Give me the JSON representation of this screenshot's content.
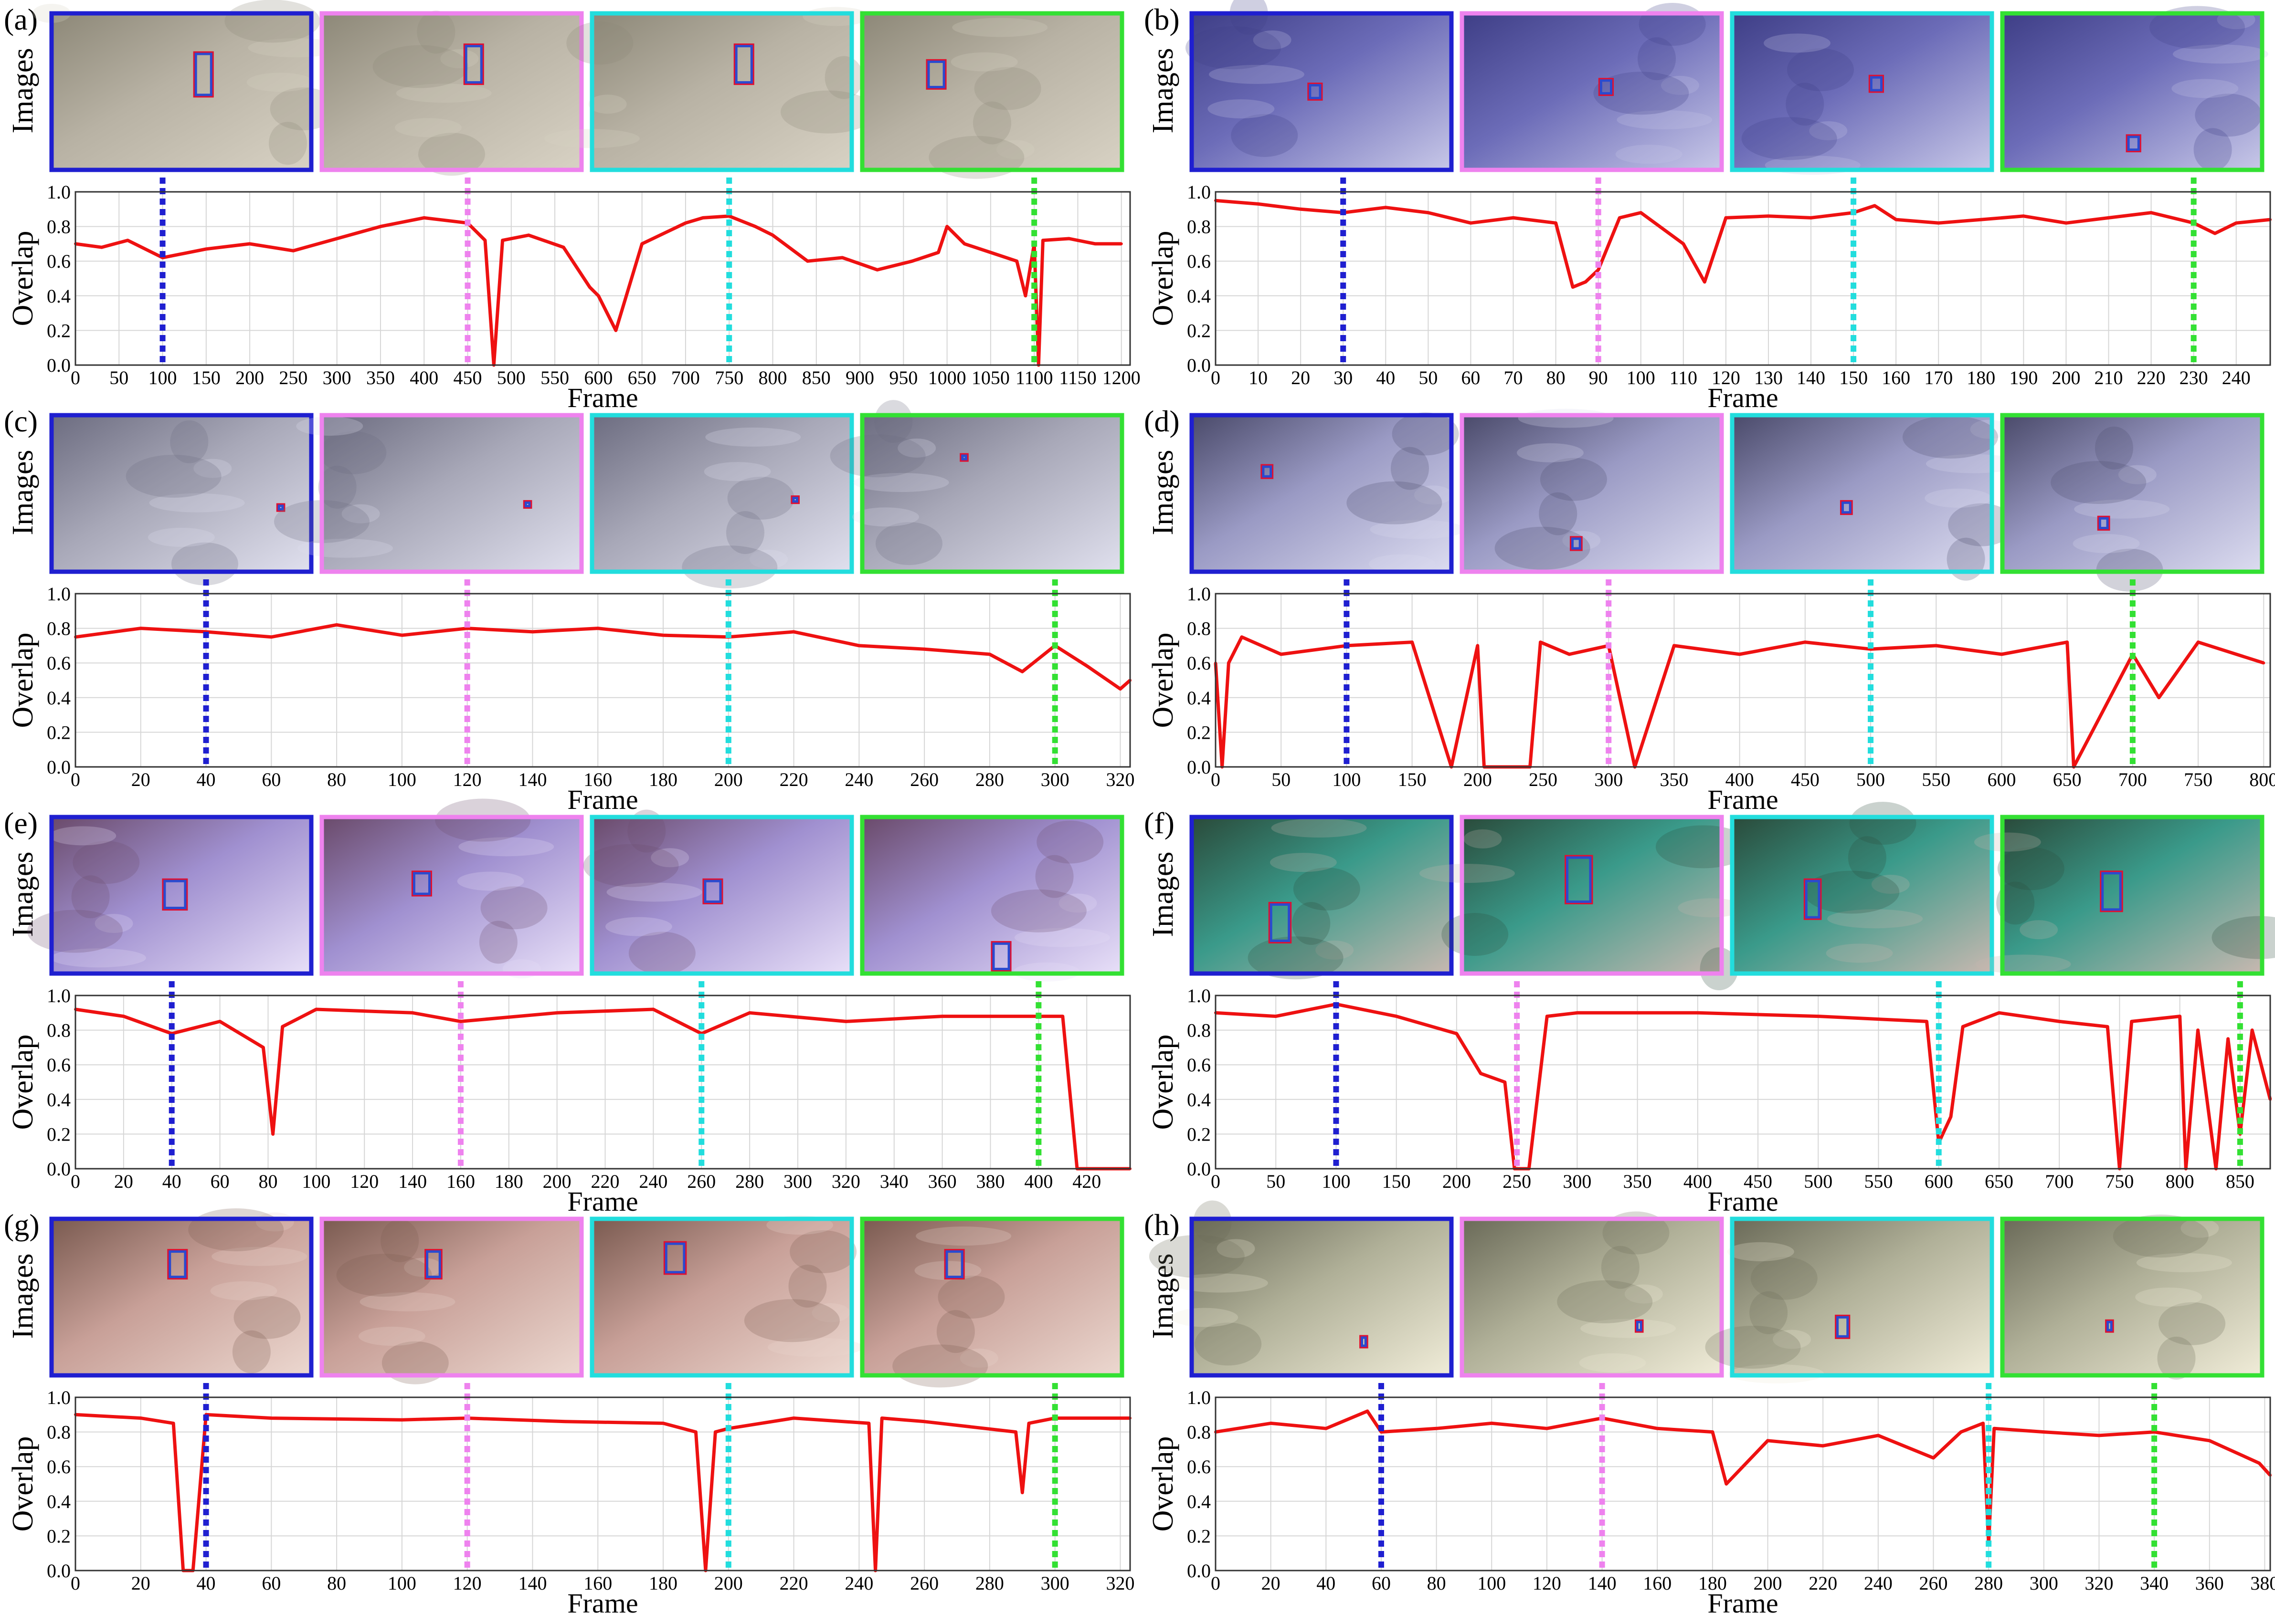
{
  "figure": {
    "row_labels": {
      "images": "Images",
      "overlap": "Overlap"
    },
    "x_axis_label": "Frame",
    "marker_colors": [
      "#1f1fd0",
      "#ee82ee",
      "#22dddd",
      "#33e033"
    ],
    "series_color": "#ee1111"
  },
  "chart_data": [
    {
      "panel": "(a)",
      "type": "line",
      "xlabel": "Frame",
      "ylabel": "Overlap",
      "xlim": [
        0,
        1210
      ],
      "ylim": [
        0,
        1.0
      ],
      "grid": true,
      "xticks": [
        0,
        50,
        100,
        150,
        200,
        250,
        300,
        350,
        400,
        450,
        500,
        550,
        600,
        650,
        700,
        750,
        800,
        850,
        900,
        950,
        1000,
        1050,
        1100,
        1150,
        1200
      ],
      "yticks": [
        "0.0",
        "0.2",
        "0.4",
        "0.6",
        "0.8",
        "1.0"
      ],
      "marker_frames": [
        100,
        450,
        750,
        1100
      ],
      "scene": [
        "#b8b2a4",
        "#8d8878",
        "#d8d2c4"
      ],
      "boxes": [
        [
          0.55,
          0.25,
          0.07,
          0.28
        ],
        [
          0.55,
          0.2,
          0.07,
          0.25
        ],
        [
          0.55,
          0.2,
          0.07,
          0.25
        ],
        [
          0.25,
          0.3,
          0.07,
          0.18
        ]
      ],
      "x": [
        0,
        30,
        60,
        100,
        150,
        200,
        250,
        300,
        350,
        400,
        450,
        470,
        480,
        490,
        520,
        560,
        590,
        600,
        620,
        650,
        700,
        720,
        750,
        780,
        800,
        840,
        880,
        920,
        960,
        990,
        1000,
        1020,
        1050,
        1080,
        1090,
        1100,
        1105,
        1110,
        1140,
        1170,
        1200
      ],
      "values": [
        0.7,
        0.68,
        0.72,
        0.62,
        0.67,
        0.7,
        0.66,
        0.73,
        0.8,
        0.85,
        0.82,
        0.72,
        0.0,
        0.72,
        0.75,
        0.68,
        0.45,
        0.4,
        0.2,
        0.7,
        0.82,
        0.85,
        0.86,
        0.8,
        0.75,
        0.6,
        0.62,
        0.55,
        0.6,
        0.65,
        0.8,
        0.7,
        0.65,
        0.6,
        0.4,
        0.7,
        0.0,
        0.72,
        0.73,
        0.7,
        0.7
      ]
    },
    {
      "panel": "(b)",
      "type": "line",
      "xlabel": "Frame",
      "ylabel": "Overlap",
      "xlim": [
        0,
        248
      ],
      "ylim": [
        0,
        1.0
      ],
      "grid": true,
      "xticks": [
        0,
        10,
        20,
        30,
        40,
        50,
        60,
        70,
        80,
        90,
        100,
        110,
        120,
        130,
        140,
        150,
        160,
        170,
        180,
        190,
        200,
        210,
        220,
        230,
        240
      ],
      "yticks": [
        "0.0",
        "0.2",
        "0.4",
        "0.6",
        "0.8",
        "1.0"
      ],
      "marker_frames": [
        30,
        90,
        150,
        230
      ],
      "scene": [
        "#6c6cb8",
        "#3e3e86",
        "#c8c8e8"
      ],
      "boxes": [
        [
          0.45,
          0.45,
          0.05,
          0.1
        ],
        [
          0.53,
          0.42,
          0.05,
          0.1
        ],
        [
          0.53,
          0.4,
          0.05,
          0.1
        ],
        [
          0.48,
          0.78,
          0.05,
          0.1
        ]
      ],
      "x": [
        0,
        10,
        20,
        30,
        40,
        50,
        60,
        70,
        80,
        84,
        87,
        90,
        95,
        100,
        110,
        115,
        120,
        130,
        140,
        150,
        155,
        160,
        170,
        180,
        190,
        200,
        210,
        220,
        230,
        235,
        240,
        248
      ],
      "values": [
        0.95,
        0.93,
        0.9,
        0.88,
        0.91,
        0.88,
        0.82,
        0.85,
        0.82,
        0.45,
        0.48,
        0.55,
        0.85,
        0.88,
        0.7,
        0.48,
        0.85,
        0.86,
        0.85,
        0.88,
        0.92,
        0.84,
        0.82,
        0.84,
        0.86,
        0.82,
        0.85,
        0.88,
        0.82,
        0.76,
        0.82,
        0.84
      ]
    },
    {
      "panel": "(c)",
      "type": "line",
      "xlabel": "Frame",
      "ylabel": "Overlap",
      "xlim": [
        0,
        323
      ],
      "ylim": [
        0,
        1.0
      ],
      "grid": true,
      "xticks": [
        0,
        20,
        40,
        60,
        80,
        100,
        120,
        140,
        160,
        180,
        200,
        220,
        240,
        260,
        280,
        300,
        320
      ],
      "yticks": [
        "0.0",
        "0.2",
        "0.4",
        "0.6",
        "0.8",
        "1.0"
      ],
      "marker_frames": [
        40,
        120,
        200,
        300
      ],
      "scene": [
        "#a8a8b8",
        "#6c6c80",
        "#e0e0ee"
      ],
      "boxes": [
        [
          0.87,
          0.57,
          0.025,
          0.04
        ],
        [
          0.78,
          0.55,
          0.025,
          0.04
        ],
        [
          0.77,
          0.52,
          0.025,
          0.04
        ],
        [
          0.38,
          0.25,
          0.025,
          0.04
        ]
      ],
      "x": [
        0,
        20,
        40,
        60,
        80,
        100,
        120,
        140,
        160,
        180,
        200,
        220,
        240,
        260,
        280,
        290,
        300,
        310,
        320,
        323
      ],
      "values": [
        0.75,
        0.8,
        0.78,
        0.75,
        0.82,
        0.76,
        0.8,
        0.78,
        0.8,
        0.76,
        0.75,
        0.78,
        0.7,
        0.68,
        0.65,
        0.55,
        0.7,
        0.58,
        0.45,
        0.5
      ]
    },
    {
      "panel": "(d)",
      "type": "line",
      "xlabel": "Frame",
      "ylabel": "Overlap",
      "xlim": [
        0,
        805
      ],
      "ylim": [
        0,
        1.0
      ],
      "grid": true,
      "xticks": [
        0,
        50,
        100,
        150,
        200,
        250,
        300,
        350,
        400,
        450,
        500,
        550,
        600,
        650,
        700,
        750,
        800
      ],
      "yticks": [
        "0.0",
        "0.2",
        "0.4",
        "0.6",
        "0.8",
        "1.0"
      ],
      "marker_frames": [
        100,
        300,
        500,
        700
      ],
      "scene": [
        "#9a9ac4",
        "#4a4a6a",
        "#dcdcf0"
      ],
      "boxes": [
        [
          0.27,
          0.32,
          0.04,
          0.08
        ],
        [
          0.42,
          0.78,
          0.04,
          0.08
        ],
        [
          0.42,
          0.55,
          0.04,
          0.08
        ],
        [
          0.37,
          0.65,
          0.04,
          0.08
        ]
      ],
      "x": [
        0,
        5,
        10,
        20,
        50,
        100,
        150,
        180,
        200,
        205,
        240,
        248,
        270,
        300,
        320,
        350,
        400,
        450,
        500,
        550,
        600,
        650,
        655,
        700,
        720,
        750,
        800
      ],
      "values": [
        0.6,
        0.0,
        0.6,
        0.75,
        0.65,
        0.7,
        0.72,
        0.0,
        0.7,
        0.0,
        0.0,
        0.72,
        0.65,
        0.7,
        0.0,
        0.7,
        0.65,
        0.72,
        0.68,
        0.7,
        0.65,
        0.72,
        0.0,
        0.65,
        0.4,
        0.72,
        0.6
      ]
    },
    {
      "panel": "(e)",
      "type": "line",
      "xlabel": "Frame",
      "ylabel": "Overlap",
      "xlim": [
        0,
        438
      ],
      "ylim": [
        0,
        1.0
      ],
      "grid": true,
      "xticks": [
        0,
        20,
        40,
        60,
        80,
        100,
        120,
        140,
        160,
        180,
        200,
        220,
        240,
        260,
        280,
        300,
        320,
        340,
        360,
        380,
        400,
        420
      ],
      "yticks": [
        "0.0",
        "0.2",
        "0.4",
        "0.6",
        "0.8",
        "1.0"
      ],
      "marker_frames": [
        40,
        160,
        260,
        400
      ],
      "scene": [
        "#a090d0",
        "#6a4a6a",
        "#e8e0f8"
      ],
      "boxes": [
        [
          0.43,
          0.4,
          0.09,
          0.19
        ],
        [
          0.35,
          0.35,
          0.07,
          0.15
        ],
        [
          0.43,
          0.4,
          0.07,
          0.15
        ],
        [
          0.5,
          0.8,
          0.07,
          0.18
        ]
      ],
      "x": [
        0,
        20,
        40,
        60,
        78,
        82,
        86,
        100,
        140,
        160,
        200,
        240,
        260,
        280,
        320,
        360,
        400,
        410,
        416,
        438
      ],
      "values": [
        0.92,
        0.88,
        0.78,
        0.85,
        0.7,
        0.2,
        0.82,
        0.92,
        0.9,
        0.85,
        0.9,
        0.92,
        0.78,
        0.9,
        0.85,
        0.88,
        0.88,
        0.88,
        0.0,
        0.0
      ]
    },
    {
      "panel": "(f)",
      "type": "line",
      "xlabel": "Frame",
      "ylabel": "Overlap",
      "xlim": [
        0,
        875
      ],
      "ylim": [
        0,
        1.0
      ],
      "grid": true,
      "xticks": [
        0,
        50,
        100,
        150,
        200,
        250,
        300,
        350,
        400,
        450,
        500,
        550,
        600,
        650,
        700,
        750,
        800,
        850
      ],
      "yticks": [
        "0.0",
        "0.2",
        "0.4",
        "0.6",
        "0.8",
        "1.0"
      ],
      "marker_frames": [
        100,
        250,
        600,
        850
      ],
      "scene": [
        "#3a9a8a",
        "#2a4a3a",
        "#c8b8b0"
      ],
      "boxes": [
        [
          0.3,
          0.55,
          0.08,
          0.25
        ],
        [
          0.4,
          0.25,
          0.1,
          0.3
        ],
        [
          0.28,
          0.4,
          0.06,
          0.25
        ],
        [
          0.38,
          0.35,
          0.08,
          0.25
        ]
      ],
      "x": [
        0,
        50,
        100,
        150,
        200,
        220,
        240,
        248,
        252,
        260,
        275,
        300,
        400,
        500,
        590,
        600,
        610,
        620,
        650,
        700,
        740,
        750,
        760,
        800,
        805,
        815,
        830,
        840,
        850,
        860,
        875
      ],
      "values": [
        0.9,
        0.88,
        0.95,
        0.88,
        0.78,
        0.55,
        0.5,
        0.0,
        0.0,
        0.0,
        0.88,
        0.9,
        0.9,
        0.88,
        0.85,
        0.15,
        0.3,
        0.82,
        0.9,
        0.85,
        0.82,
        0.0,
        0.85,
        0.88,
        0.0,
        0.8,
        0.0,
        0.75,
        0.2,
        0.8,
        0.4
      ]
    },
    {
      "panel": "(g)",
      "type": "line",
      "xlabel": "Frame",
      "ylabel": "Overlap",
      "xlim": [
        0,
        323
      ],
      "ylim": [
        0,
        1.0
      ],
      "grid": true,
      "xticks": [
        0,
        20,
        40,
        60,
        80,
        100,
        120,
        140,
        160,
        180,
        200,
        220,
        240,
        260,
        280,
        300,
        320
      ],
      "yticks": [
        "0.0",
        "0.2",
        "0.4",
        "0.6",
        "0.8",
        "1.0"
      ],
      "marker_frames": [
        40,
        120,
        200,
        300
      ],
      "scene": [
        "#c8a098",
        "#7a5a50",
        "#ecd8d0"
      ],
      "boxes": [
        [
          0.45,
          0.2,
          0.07,
          0.18
        ],
        [
          0.4,
          0.2,
          0.06,
          0.18
        ],
        [
          0.28,
          0.15,
          0.08,
          0.2
        ],
        [
          0.32,
          0.2,
          0.07,
          0.18
        ]
      ],
      "x": [
        0,
        20,
        30,
        33,
        36,
        40,
        60,
        100,
        120,
        150,
        180,
        190,
        193,
        196,
        200,
        220,
        243,
        245,
        247,
        260,
        288,
        290,
        292,
        300,
        323
      ],
      "values": [
        0.9,
        0.88,
        0.85,
        0.0,
        0.0,
        0.9,
        0.88,
        0.87,
        0.88,
        0.86,
        0.85,
        0.8,
        0.0,
        0.8,
        0.82,
        0.88,
        0.85,
        0.0,
        0.88,
        0.86,
        0.8,
        0.45,
        0.85,
        0.88,
        0.88
      ]
    },
    {
      "panel": "(h)",
      "type": "line",
      "xlabel": "Frame",
      "ylabel": "Overlap",
      "xlim": [
        0,
        382
      ],
      "ylim": [
        0,
        1.0
      ],
      "grid": true,
      "xticks": [
        0,
        20,
        40,
        60,
        80,
        100,
        120,
        140,
        160,
        180,
        200,
        220,
        240,
        260,
        280,
        300,
        320,
        340,
        360,
        380
      ],
      "yticks": [
        "0.0",
        "0.2",
        "0.4",
        "0.6",
        "0.8",
        "1.0"
      ],
      "marker_frames": [
        60,
        140,
        280,
        340
      ],
      "scene": [
        "#b0b098",
        "#6a6a58",
        "#f0ecd8"
      ],
      "boxes": [
        [
          0.65,
          0.75,
          0.025,
          0.07
        ],
        [
          0.67,
          0.65,
          0.025,
          0.07
        ],
        [
          0.4,
          0.62,
          0.05,
          0.14
        ],
        [
          0.4,
          0.65,
          0.025,
          0.07
        ]
      ],
      "x": [
        0,
        20,
        40,
        55,
        60,
        80,
        100,
        120,
        140,
        160,
        180,
        185,
        200,
        220,
        240,
        260,
        270,
        278,
        280,
        282,
        300,
        320,
        340,
        360,
        378,
        382
      ],
      "values": [
        0.8,
        0.85,
        0.82,
        0.92,
        0.8,
        0.82,
        0.85,
        0.82,
        0.88,
        0.82,
        0.8,
        0.5,
        0.75,
        0.72,
        0.78,
        0.65,
        0.8,
        0.85,
        0.15,
        0.82,
        0.8,
        0.78,
        0.8,
        0.75,
        0.62,
        0.55
      ]
    }
  ]
}
